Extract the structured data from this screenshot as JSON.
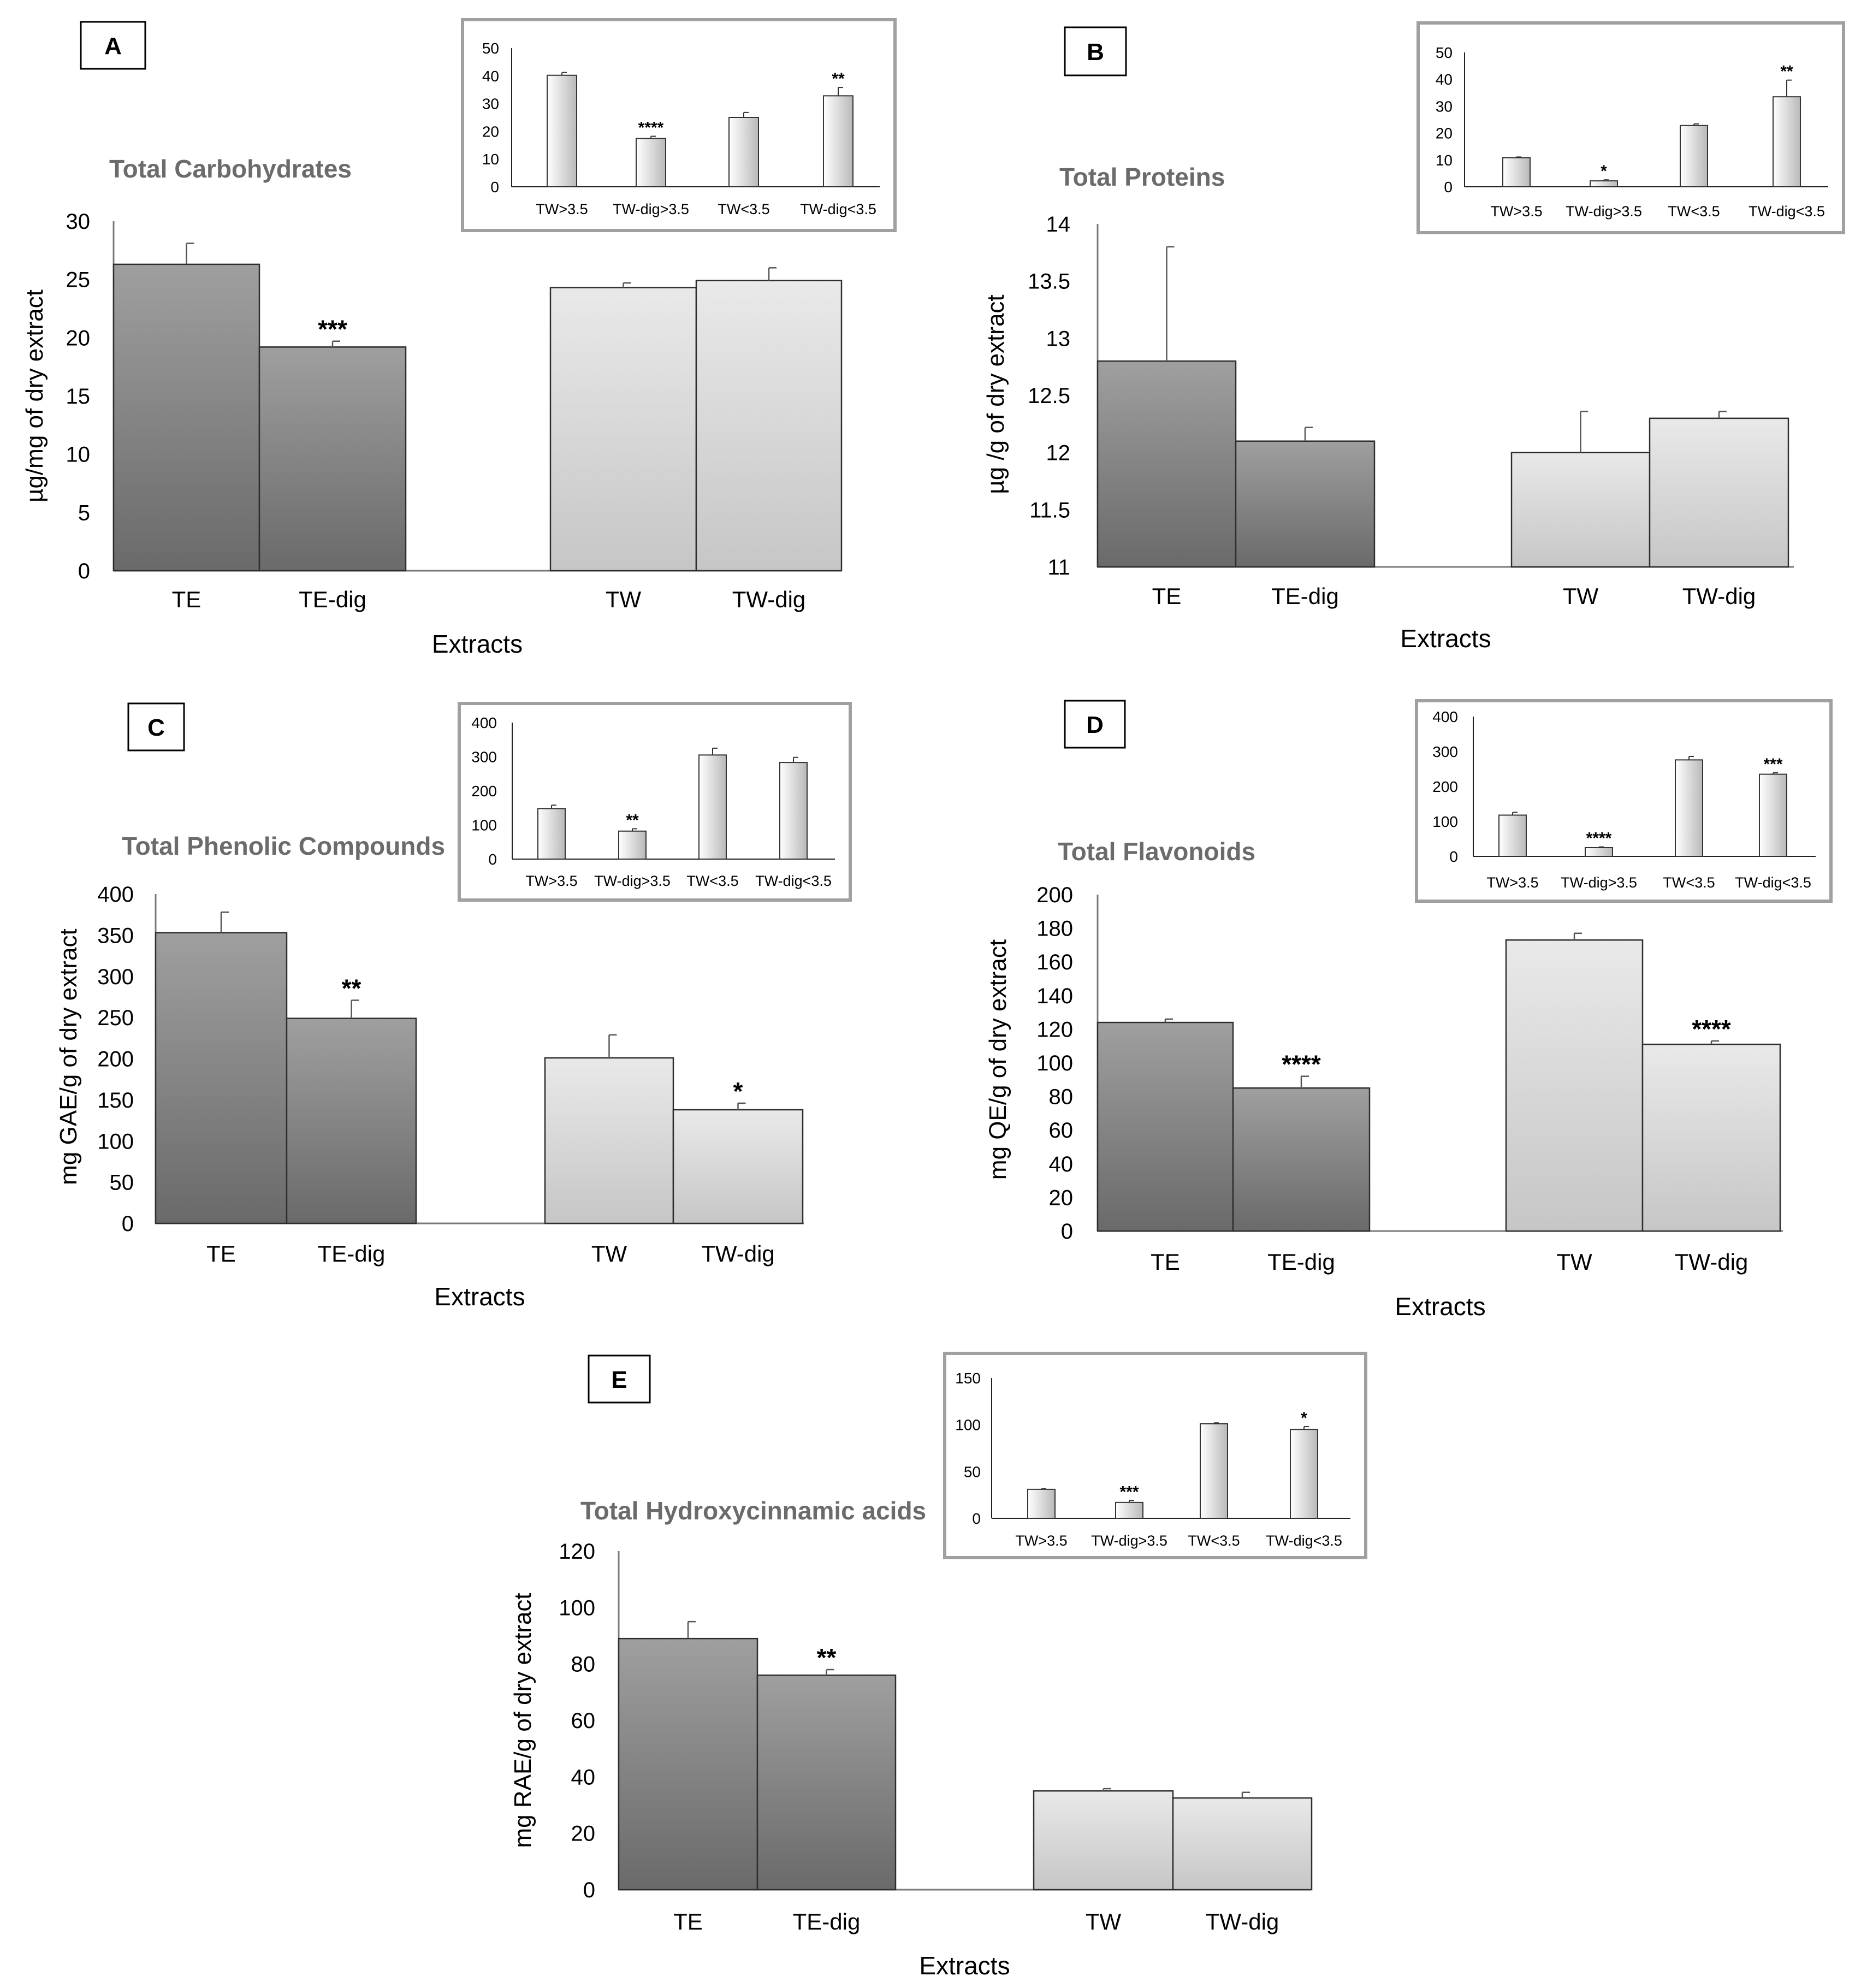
{
  "panels": [
    {
      "label": "A",
      "chart_data": {
        "type": "bar",
        "title": "Total Carbohydrates",
        "xlabel": "Extracts",
        "ylabel": "µg/mg of dry extract",
        "ylim": [
          0,
          30
        ],
        "yticks": [
          0,
          5,
          10,
          15,
          20,
          25,
          30
        ],
        "categories": [
          "TE",
          "TE-dig",
          "TW",
          "TW-dig"
        ],
        "values": [
          26.3,
          19.2,
          24.3,
          24.9
        ],
        "errors": [
          1.8,
          0.5,
          0.4,
          1.1
        ],
        "significance": [
          "",
          "***",
          "",
          ""
        ],
        "fills": [
          "dark",
          "dark",
          "light",
          "light"
        ]
      },
      "inset": {
        "chart_data": {
          "type": "bar",
          "categories": [
            "TW>3.5",
            "TW-dig>3.5",
            "TW<3.5",
            "TW-dig<3.5"
          ],
          "values": [
            40.2,
            17.4,
            25.0,
            32.8
          ],
          "errors": [
            1.0,
            0.8,
            1.8,
            3.0
          ],
          "significance": [
            "",
            "****",
            "",
            "**"
          ],
          "ylim": [
            0,
            50
          ],
          "yticks": [
            0,
            10,
            20,
            30,
            40,
            50
          ]
        }
      }
    },
    {
      "label": "B",
      "chart_data": {
        "type": "bar",
        "title": "Total Proteins",
        "xlabel": "Extracts",
        "ylabel": "µg /g of dry extract",
        "ylim": [
          11,
          14
        ],
        "yticks": [
          11,
          11.5,
          12,
          12.5,
          13,
          13.5,
          14
        ],
        "categories": [
          "TE",
          "TE-dig",
          "TW",
          "TW-dig"
        ],
        "values": [
          12.8,
          12.1,
          12.0,
          12.3
        ],
        "errors": [
          1.0,
          0.12,
          0.36,
          0.06
        ],
        "significance": [
          "",
          "",
          "",
          ""
        ],
        "fills": [
          "dark",
          "dark",
          "light",
          "light"
        ]
      },
      "inset": {
        "chart_data": {
          "type": "bar",
          "categories": [
            "TW>3.5",
            "TW-dig>3.5",
            "TW<3.5",
            "TW-dig<3.5"
          ],
          "values": [
            10.8,
            2.2,
            22.8,
            33.5
          ],
          "errors": [
            0.3,
            0.4,
            0.6,
            6.2
          ],
          "significance": [
            "",
            "*",
            "",
            "**"
          ],
          "ylim": [
            0,
            50
          ],
          "yticks": [
            0,
            10,
            20,
            30,
            40,
            50
          ]
        }
      }
    },
    {
      "label": "C",
      "chart_data": {
        "type": "bar",
        "title": "Total Phenolic Compounds",
        "xlabel": "Extracts",
        "ylabel": "mg GAE/g of dry extract",
        "ylim": [
          0,
          400
        ],
        "yticks": [
          0,
          50,
          100,
          150,
          200,
          250,
          300,
          350,
          400
        ],
        "categories": [
          "TE",
          "TE-dig",
          "TW",
          "TW-dig"
        ],
        "values": [
          353,
          249,
          201,
          138
        ],
        "errors": [
          25,
          22,
          28,
          8
        ],
        "significance": [
          "",
          "**",
          "",
          "*"
        ],
        "fills": [
          "dark",
          "dark",
          "light",
          "light"
        ]
      },
      "inset": {
        "chart_data": {
          "type": "bar",
          "categories": [
            "TW>3.5",
            "TW-dig>3.5",
            "TW<3.5",
            "TW-dig<3.5"
          ],
          "values": [
            148,
            82,
            305,
            283
          ],
          "errors": [
            10,
            7,
            20,
            15
          ],
          "significance": [
            "",
            "**",
            "",
            ""
          ],
          "ylim": [
            0,
            400
          ],
          "yticks": [
            0,
            100,
            200,
            300,
            400
          ]
        }
      }
    },
    {
      "label": "D",
      "chart_data": {
        "type": "bar",
        "title": "Total Flavonoids",
        "xlabel": "Extracts",
        "ylabel": "mg QE/g of dry extract",
        "ylim": [
          0,
          200
        ],
        "yticks": [
          0,
          20,
          40,
          60,
          80,
          100,
          120,
          140,
          160,
          180,
          200
        ],
        "categories": [
          "TE",
          "TE-dig",
          "TW",
          "TW-dig"
        ],
        "values": [
          124,
          85,
          173,
          111
        ],
        "errors": [
          2,
          7,
          4,
          2
        ],
        "significance": [
          "",
          "****",
          "",
          "****"
        ],
        "fills": [
          "dark",
          "dark",
          "light",
          "light"
        ]
      },
      "inset": {
        "chart_data": {
          "type": "bar",
          "categories": [
            "TW>3.5",
            "TW-dig>3.5",
            "TW<3.5",
            "TW-dig<3.5"
          ],
          "values": [
            118,
            25,
            276,
            235
          ],
          "errors": [
            8,
            2,
            10,
            4
          ],
          "significance": [
            "",
            "****",
            "",
            "***"
          ],
          "ylim": [
            0,
            400
          ],
          "yticks": [
            0,
            100,
            200,
            300,
            400
          ]
        }
      }
    },
    {
      "label": "E",
      "chart_data": {
        "type": "bar",
        "title": "Total Hydroxycinnamic acids",
        "xlabel": "Extracts",
        "ylabel": "mg RAE/g of dry extract",
        "ylim": [
          0,
          120
        ],
        "yticks": [
          0,
          20,
          40,
          60,
          80,
          100,
          120
        ],
        "categories": [
          "TE",
          "TE-dig",
          "TW",
          "TW-dig"
        ],
        "values": [
          89,
          76,
          35,
          32.5
        ],
        "errors": [
          6,
          2,
          0.8,
          2
        ],
        "significance": [
          "",
          "**",
          "",
          ""
        ],
        "fills": [
          "dark",
          "dark",
          "light",
          "light"
        ]
      },
      "inset": {
        "chart_data": {
          "type": "bar",
          "categories": [
            "TW>3.5",
            "TW-dig>3.5",
            "TW<3.5",
            "TW-dig<3.5"
          ],
          "values": [
            31,
            17,
            101,
            95
          ],
          "errors": [
            0.5,
            2,
            1,
            3
          ],
          "significance": [
            "",
            "***",
            "",
            "*"
          ],
          "ylim": [
            0,
            150
          ],
          "yticks": [
            0,
            50,
            100,
            150
          ]
        }
      }
    }
  ]
}
